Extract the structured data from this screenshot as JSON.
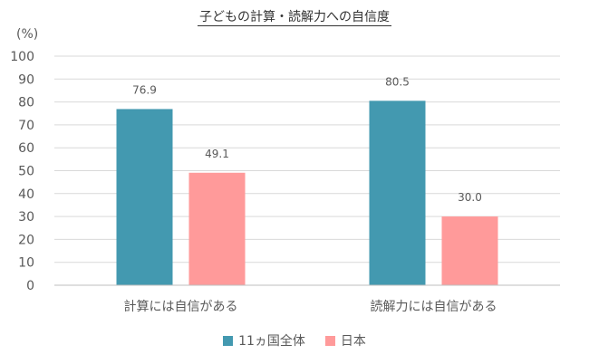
{
  "chart_data": {
    "type": "bar",
    "title": "子どもの計算・読解力への自信度",
    "ylabel": "(%)",
    "categories": [
      "計算には自信がある",
      "読解力には自信がある"
    ],
    "series": [
      {
        "name": "11ヵ国全体",
        "values": [
          76.9,
          80.5
        ],
        "color": "#4399B0"
      },
      {
        "name": "日本",
        "values": [
          49.1,
          30.0
        ],
        "color": "#FF9A9A"
      }
    ],
    "ylim": [
      0,
      100
    ],
    "yticks": [
      0,
      10,
      20,
      30,
      40,
      50,
      60,
      70,
      80,
      90,
      100
    ],
    "value_labels": [
      [
        "76.9",
        "80.5"
      ],
      [
        "49.1",
        "30.0"
      ]
    ],
    "grid": true,
    "legend_position": "bottom"
  }
}
